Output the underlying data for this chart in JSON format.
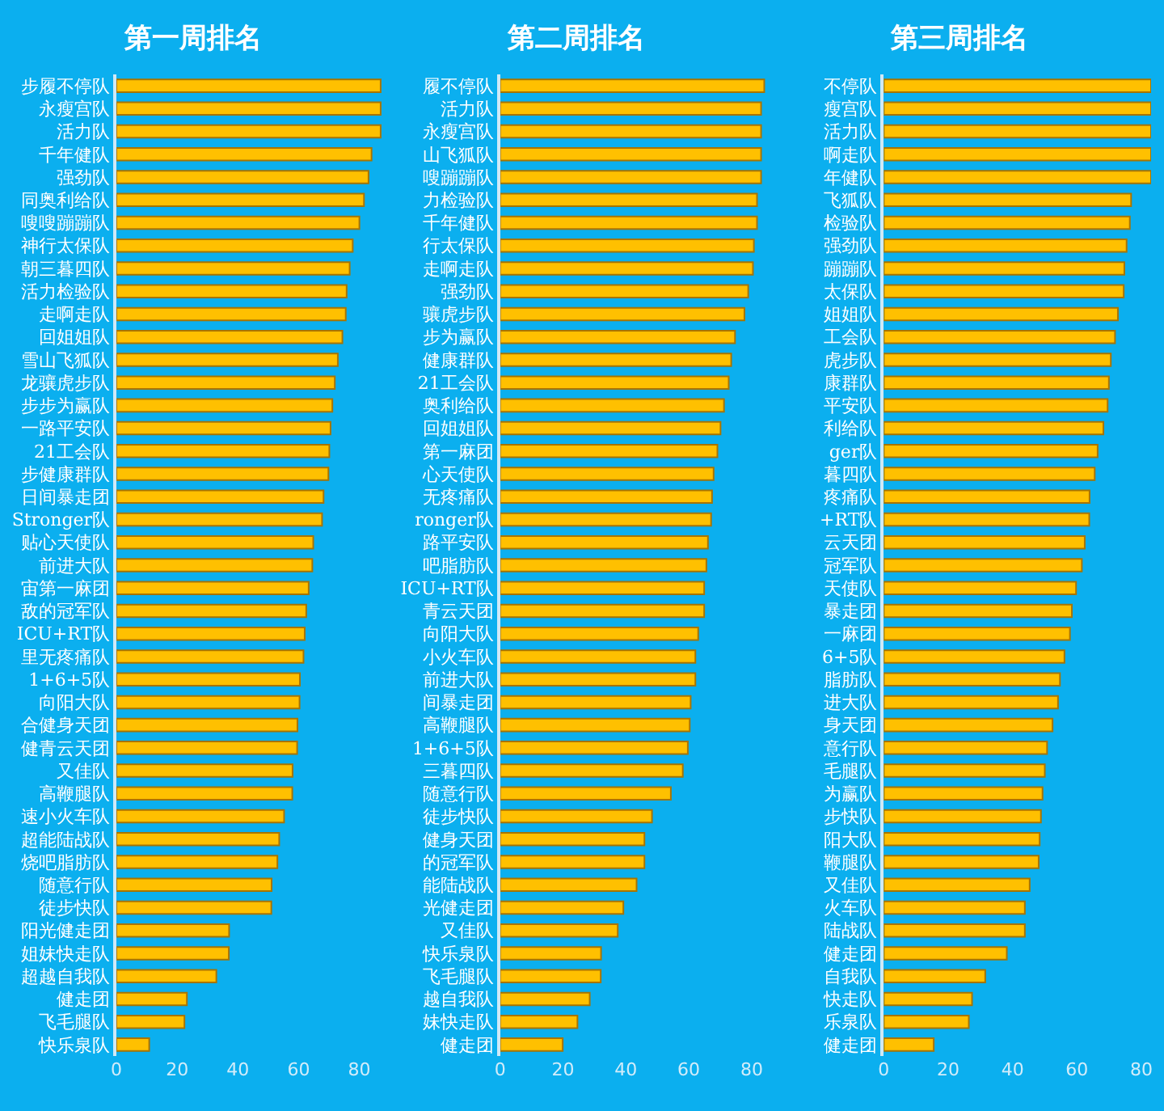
{
  "chart_data": [
    {
      "type": "bar",
      "orientation": "horizontal",
      "title": "第一周排名",
      "color": "#ffc000",
      "xlim": [
        0,
        88
      ],
      "xticks": [
        0,
        20,
        40,
        60,
        80
      ],
      "categories": [
        "步履不停队",
        "永瘦宫队",
        "活力队",
        "千年健队",
        "强劲队",
        "同奥利给队",
        "嗖嗖蹦蹦队",
        "神行太保队",
        "朝三暮四队",
        "活力检验队",
        "走啊走队",
        "回姐姐队",
        "雪山飞狐队",
        "龙骧虎步队",
        "步步为赢队",
        "一路平安队",
        "21工会队",
        "步健康群队",
        "日间暴走团",
        "Stronger队",
        "贴心天使队",
        "前进大队",
        "宙第一麻团",
        "敌的冠军队",
        "ICU+RT队",
        "里无疼痛队",
        "1+6+5队",
        "向阳大队",
        "合健身天团",
        "健青云天团",
        "又佳队",
        "高鞭腿队",
        "速小火车队",
        "超能陆战队",
        "烧吧脂肪队",
        "随意行队",
        "徒步快队",
        "阳光健走团",
        "姐妹快走队",
        "超越自我队",
        "健走团",
        "飞毛腿队",
        "快乐泉队"
      ],
      "values": [
        87,
        87,
        87,
        84,
        83,
        81.5,
        80,
        77.8,
        76.8,
        75.8,
        75.5,
        74.4,
        72.9,
        71.9,
        71.1,
        70.5,
        70.1,
        69.8,
        68.2,
        67.7,
        64.8,
        64.5,
        63.3,
        62.5,
        62,
        61.6,
        60.4,
        60.3,
        59.6,
        59.5,
        58,
        57.9,
        55.2,
        53.6,
        53,
        51.1,
        51,
        37.1,
        37,
        32.9,
        23.2,
        22.4,
        10.8
      ]
    },
    {
      "type": "bar",
      "orientation": "horizontal",
      "title": "第二周排名",
      "color": "#ffc000",
      "xlim": [
        0,
        85
      ],
      "xticks": [
        0,
        20,
        40,
        60,
        80
      ],
      "categories": [
        "履不停队",
        "活力队",
        "永瘦宫队",
        "山飞狐队",
        "嗖蹦蹦队",
        "力检验队",
        "千年健队",
        "行太保队",
        "走啊走队",
        "强劲队",
        "骧虎步队",
        "步为赢队",
        "健康群队",
        "21工会队",
        "奥利给队",
        "回姐姐队",
        "第一麻团",
        "心天使队",
        "无疼痛队",
        "ronger队",
        "路平安队",
        "吧脂肪队",
        "ICU+RT队",
        "青云天团",
        "向阳大队",
        "小火车队",
        "前进大队",
        "间暴走团",
        "高鞭腿队",
        "1+6+5队",
        "三暮四队",
        "随意行队",
        "徒步快队",
        "健身天团",
        "的冠军队",
        "能陆战队",
        "光健走团",
        "又佳队",
        "快乐泉队",
        "飞毛腿队",
        "越自我队",
        "妹快走队",
        "健走团"
      ],
      "values": [
        84,
        83,
        83,
        83,
        83,
        81.7,
        81.7,
        80.7,
        80.4,
        78.9,
        77.7,
        74.7,
        73.5,
        72.7,
        71.2,
        70.1,
        69.1,
        67.9,
        67.4,
        67.1,
        66.1,
        65.6,
        64.9,
        64.9,
        63,
        62.1,
        62.1,
        60.6,
        60.3,
        59.7,
        58.1,
        54.3,
        48.3,
        45.9,
        45.9,
        43.4,
        39.2,
        37.4,
        32.1,
        32,
        28.5,
        24.6,
        19.9
      ]
    },
    {
      "type": "bar",
      "orientation": "horizontal",
      "title": "第三周排名",
      "color": "#ffc000",
      "xlim": [
        0,
        83
      ],
      "xticks": [
        0,
        20,
        40,
        60,
        80
      ],
      "categories": [
        "不停队",
        "瘦宫队",
        "活力队",
        "啊走队",
        "年健队",
        "飞狐队",
        "检验队",
        "强劲队",
        "蹦蹦队",
        "太保队",
        "姐姐队",
        "工会队",
        "虎步队",
        "康群队",
        "平安队",
        "利给队",
        "ger队",
        "暮四队",
        "疼痛队",
        "+RT队",
        "云天团",
        "冠军队",
        "天使队",
        "暴走团",
        "一麻团",
        "6+5队",
        "脂肪队",
        "进大队",
        "身天团",
        "意行队",
        "毛腿队",
        "为赢队",
        "步快队",
        "阳大队",
        "鞭腿队",
        "又佳队",
        "火车队",
        "陆战队",
        "健走团",
        "自我队",
        "快走队",
        "乐泉队",
        "健走团"
      ],
      "values": [
        83,
        83,
        83,
        83,
        83,
        76.8,
        76.4,
        75.4,
        74.7,
        74.5,
        72.7,
        71.8,
        70.5,
        69.9,
        69.5,
        68.2,
        66.4,
        65.5,
        63.9,
        63.8,
        62.4,
        61.5,
        59.7,
        58.4,
        57.8,
        56.1,
        54.7,
        54.1,
        52.4,
        50.7,
        50,
        49.3,
        48.8,
        48.4,
        48.1,
        45.3,
        43.8,
        43.8,
        38.2,
        31.5,
        27.4,
        26.4,
        15.5
      ]
    }
  ]
}
